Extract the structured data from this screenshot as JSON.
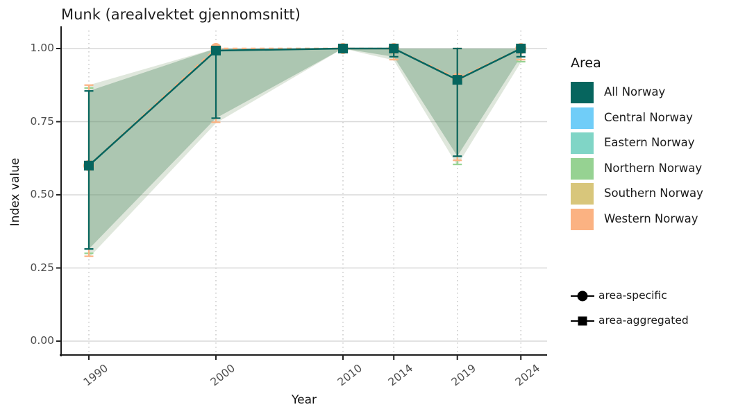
{
  "title": "Munk (arealvektet gjennomsnitt)",
  "x_axis": {
    "label": "Year",
    "ticks": [
      "1990",
      "2000",
      "2010",
      "2014",
      "2019",
      "2024"
    ]
  },
  "y_axis": {
    "label": "Index value",
    "ticks": [
      "0.00",
      "0.25",
      "0.50",
      "0.75",
      "1.00"
    ]
  },
  "legend": {
    "area": {
      "title": "Area",
      "items": [
        {
          "label": "All Norway",
          "color": "#06655e"
        },
        {
          "label": "Central Norway",
          "color": "#70cdf8"
        },
        {
          "label": "Eastern Norway",
          "color": "#80d5c6"
        },
        {
          "label": "Northern Norway",
          "color": "#96d292"
        },
        {
          "label": "Southern Norway",
          "color": "#d8c67b"
        },
        {
          "label": "Western Norway",
          "color": "#fbb282"
        }
      ]
    },
    "shape": {
      "items": [
        {
          "label": "area-specific",
          "shape": "circle"
        },
        {
          "label": "area-aggregated",
          "shape": "square"
        }
      ]
    }
  },
  "chart_data": {
    "type": "line",
    "title": "Munk (arealvektet gjennomsnitt)",
    "xlabel": "Year",
    "ylabel": "Index value",
    "x": [
      1990,
      2000,
      2010,
      2014,
      2019,
      2024
    ],
    "ylim": [
      0,
      1
    ],
    "y_tick_values": [
      0,
      0.25,
      0.5,
      0.75,
      1
    ],
    "grid": {
      "horizontal": "solid",
      "vertical": "dotted"
    },
    "legend_position": "right",
    "series": [
      {
        "name": "All Norway",
        "role": "area-aggregated",
        "marker": "square",
        "line": "solid",
        "color": "#06655e",
        "values": [
          0.6,
          0.993,
          1.0,
          1.0,
          0.893,
          1.0
        ],
        "ci_low": [
          0.315,
          0.762,
          1.0,
          0.972,
          0.632,
          0.972
        ],
        "ci_high": [
          0.855,
          1.0,
          1.0,
          1.0,
          1.0,
          1.0
        ]
      },
      {
        "name": "Western Norway",
        "role": "area-specific",
        "marker": "circle",
        "line": "dashed",
        "color": "#fbb282",
        "values": [
          0.6,
          1.0,
          1.0,
          1.0,
          0.898,
          1.0
        ],
        "ci_low": [
          0.29,
          0.748,
          1.0,
          0.962,
          0.618,
          0.962
        ],
        "ci_high": [
          0.875,
          1.0,
          1.0,
          1.0,
          1.0,
          1.0
        ]
      },
      {
        "name": "Northern Norway",
        "role": "area-specific",
        "marker": "circle",
        "line": "hidden",
        "color": "#96d292",
        "values": [
          0.6,
          0.995,
          1.0,
          1.0,
          0.893,
          1.0
        ],
        "ci_low": [
          0.3,
          0.99,
          1.0,
          1.0,
          0.604,
          0.955
        ],
        "ci_high": [
          0.865,
          1.0,
          1.0,
          1.0,
          1.0,
          1.0
        ]
      }
    ],
    "ribbons": [
      {
        "name": "area-specific-envelope",
        "fill": "rgba(140,170,130,0.28)",
        "low": [
          0.285,
          0.745,
          1.0,
          0.96,
          0.6,
          0.953
        ],
        "high": [
          0.875,
          1.0,
          1.0,
          1.0,
          1.0,
          1.0
        ]
      },
      {
        "name": "all-norway-band",
        "fill": "rgba(70,130,90,0.33)",
        "low": [
          0.315,
          0.762,
          1.0,
          0.972,
          0.632,
          0.972
        ],
        "high": [
          0.855,
          1.0,
          1.0,
          1.0,
          1.0,
          1.0
        ]
      }
    ],
    "style": {
      "h_grid_color": "#d8d8d8",
      "v_grid_color": "#c6c6c6",
      "axis_color": "#1c1c1c",
      "tick_text_color": "#4d4d4d"
    }
  }
}
